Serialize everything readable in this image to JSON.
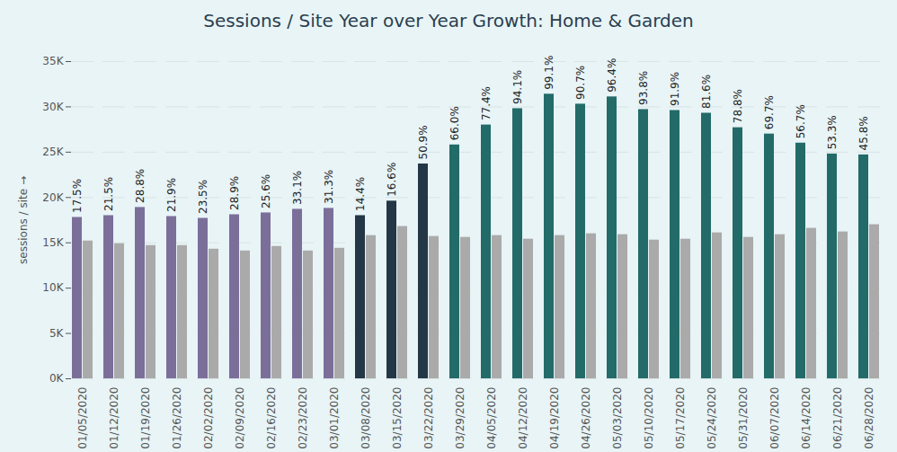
{
  "chart_data": {
    "type": "bar",
    "title": "Sessions / Site Year over Year Growth: Home & Garden",
    "y_label": "sessions / site",
    "categories": [
      "01/05/2020",
      "01/12/2020",
      "01/19/2020",
      "01/26/2020",
      "02/02/2020",
      "02/09/2020",
      "02/16/2020",
      "02/23/2020",
      "03/01/2020",
      "03/08/2020",
      "03/15/2020",
      "03/22/2020",
      "03/29/2020",
      "04/05/2020",
      "04/12/2020",
      "04/19/2020",
      "04/26/2020",
      "05/03/2020",
      "05/10/2020",
      "05/17/2020",
      "05/24/2020",
      "05/31/2020",
      "06/07/2020",
      "06/14/2020",
      "06/21/2020",
      "06/28/2020"
    ],
    "series": [
      {
        "colors": [
          "#7b6f9a",
          "#7b6f9a",
          "#7b6f9a",
          "#7b6f9a",
          "#7b6f9a",
          "#7b6f9a",
          "#7b6f9a",
          "#7b6f9a",
          "#7b6f9a",
          "#243746",
          "#243746",
          "#243746",
          "#226b68",
          "#226b68",
          "#226b68",
          "#226b68",
          "#226b68",
          "#226b68",
          "#226b68",
          "#226b68",
          "#226b68",
          "#226b68",
          "#226b68",
          "#226b68",
          "#226b68",
          "#226b68"
        ],
        "values": [
          17800,
          18000,
          18900,
          17900,
          17700,
          18100,
          18300,
          18700,
          18800,
          18000,
          19600,
          23700,
          25800,
          28000,
          29800,
          31400,
          30300,
          31100,
          29700,
          29600,
          29300,
          27700,
          27000,
          26000,
          24800,
          24700
        ],
        "growth_labels": [
          "17.5%",
          "21.5%",
          "28.8%",
          "21.9%",
          "23.5%",
          "28.9%",
          "25.6%",
          "33.1%",
          "31.3%",
          "14.4%",
          "16.6%",
          "50.9%",
          "66.0%",
          "77.4%",
          "94.1%",
          "99.1%",
          "90.7%",
          "96.4%",
          "93.8%",
          "91.9%",
          "81.6%",
          "78.8%",
          "69.7%",
          "56.7%",
          "53.3%",
          "45.8%"
        ]
      },
      {
        "color": "#aaaaaa",
        "values": [
          15200,
          14900,
          14700,
          14700,
          14300,
          14100,
          14600,
          14100,
          14400,
          15800,
          16800,
          15700,
          15600,
          15800,
          15400,
          15800,
          16000,
          15900,
          15300,
          15400,
          16100,
          15600,
          15900,
          16600,
          16200,
          17000
        ]
      }
    ],
    "ylim": [
      0,
      35000
    ],
    "yticks": [
      {
        "value": 0,
        "label": "0K"
      },
      {
        "value": 5000,
        "label": "5K"
      },
      {
        "value": 10000,
        "label": "10K"
      },
      {
        "value": 15000,
        "label": "15K"
      },
      {
        "value": 20000,
        "label": "20K"
      },
      {
        "value": 25000,
        "label": "25K"
      },
      {
        "value": 30000,
        "label": "30K"
      },
      {
        "value": 35000,
        "label": "35K"
      }
    ],
    "grid": true,
    "data_labels": true
  }
}
